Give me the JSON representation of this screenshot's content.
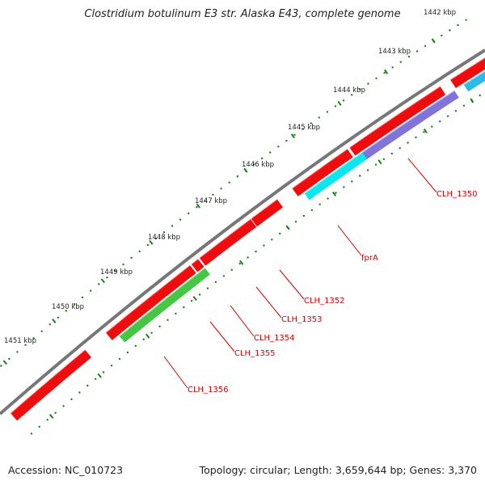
{
  "title": "Clostridium botulinum E3 str. Alaska E43, complete genome",
  "footer": {
    "accession": "Accession: NC_010723",
    "topology": "Topology: circular; Length: 3,659,644 bp; Genes: 3,370"
  },
  "colors": {
    "backbone": "#777777",
    "ticks": "#1a7f1a",
    "cds_forward": "#ee0000",
    "label": "#d40000",
    "cyan": "#00e5ee",
    "purple": "#7a6cd8",
    "green": "#3cc33c"
  },
  "kbp_labels": [
    "1442 kbp",
    "1443 kbp",
    "1444 kbp",
    "1445 kbp",
    "1446 kbp",
    "1447 kbp",
    "1448 kbp",
    "1449 kbp",
    "1450 kbp",
    "1451 kbp"
  ],
  "gene_labels": [
    "CLH_1350",
    "fprA",
    "CLH_1352",
    "CLH_1353",
    "CLH_1354",
    "CLH_1355",
    "CLH_1356"
  ]
}
